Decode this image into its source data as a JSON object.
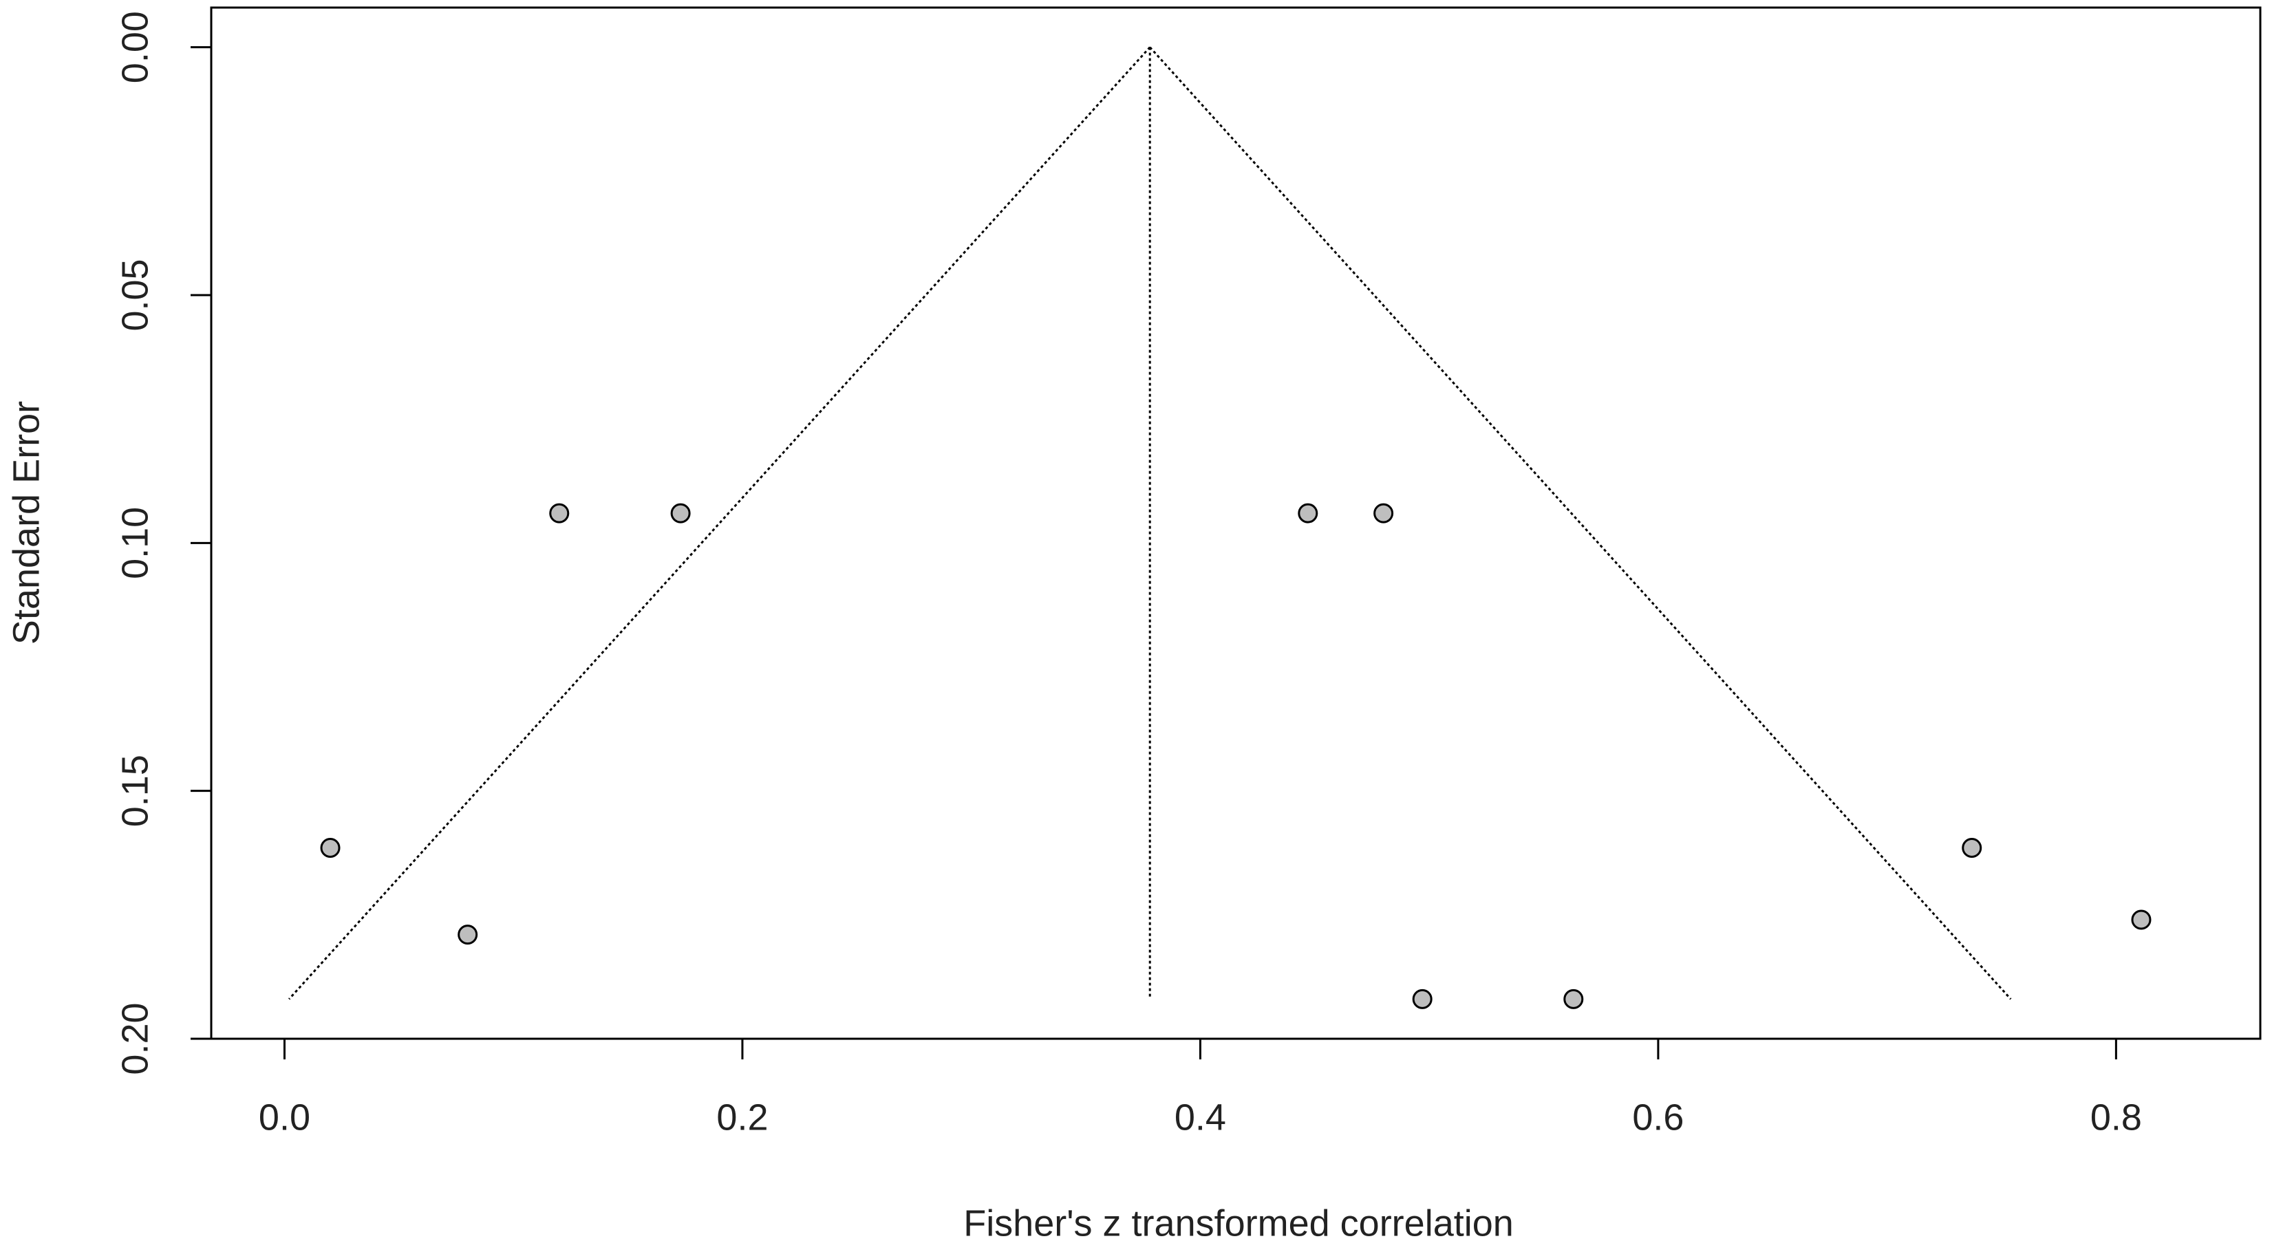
{
  "chart_data": {
    "type": "scatter",
    "x_label": "Fisher's z transformed correlation",
    "y_label": "Standard Error",
    "x": [
      0.12,
      0.173,
      0.447,
      0.48,
      0.02,
      0.08,
      0.497,
      0.563,
      0.737,
      0.811
    ],
    "values": [
      0.094,
      0.094,
      0.094,
      0.094,
      0.1615,
      0.179,
      0.192,
      0.192,
      0.1615,
      0.176
    ],
    "color": "#bebebe",
    "funnel": {
      "apex": [
        0.378,
        0
      ],
      "left": [
        0.002,
        0.192
      ],
      "right": [
        0.754,
        0.192
      ]
    },
    "xlim": [
      -0.032,
      0.863
    ],
    "ylim": [
      -0.008,
      0.2
    ],
    "y_reversed": true,
    "xticks": [
      {
        "value": 0,
        "label": "0.0"
      },
      0.2,
      0.4,
      0.6,
      0.8
    ],
    "yticks": [
      {
        "value": 0,
        "label": "0.00"
      },
      {
        "value": 0.05,
        "label": "0.05"
      },
      {
        "value": 0.1,
        "label": "0.10"
      },
      {
        "value": 0.15,
        "label": "0.15"
      },
      {
        "value": 0.2,
        "label": "0.20"
      }
    ],
    "grid": false
  }
}
